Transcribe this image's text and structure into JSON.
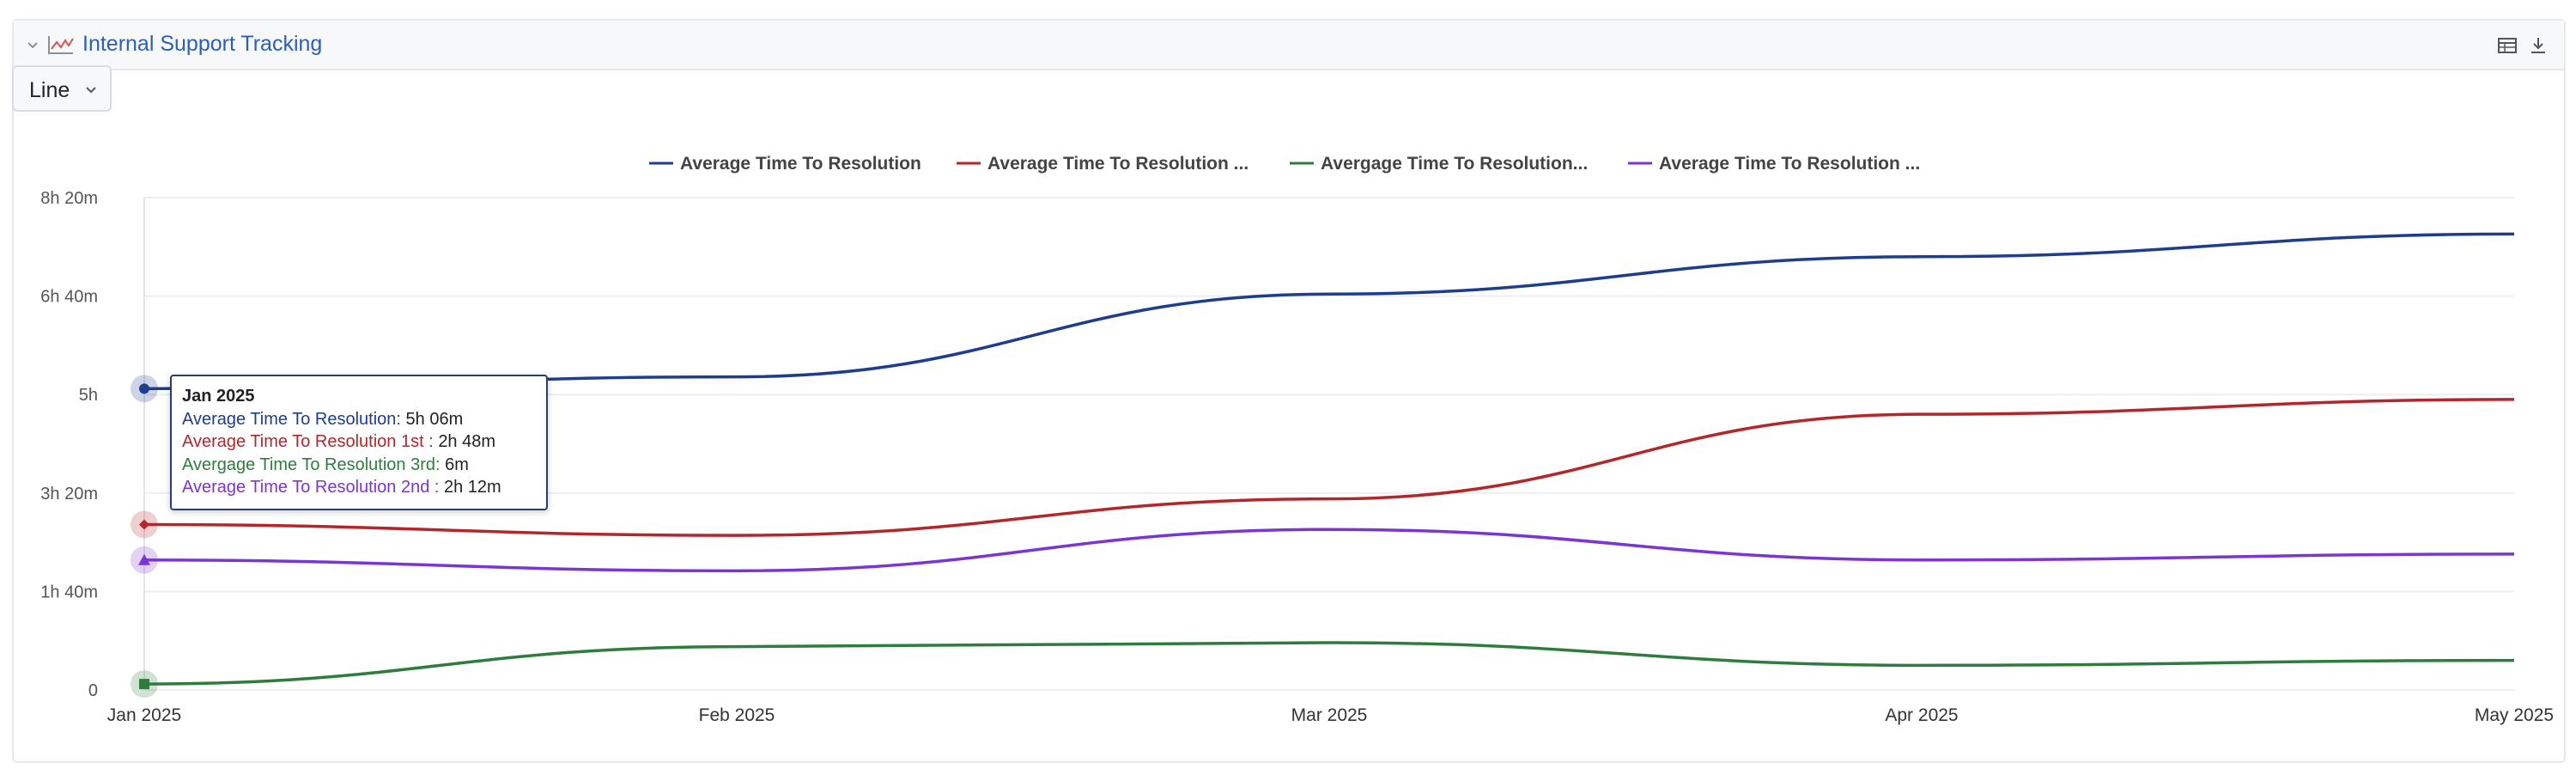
{
  "panel": {
    "title": "Internal Support Tracking",
    "icons": {
      "collapse": "chevron-down-icon",
      "chart": "line-chart-icon",
      "table": "table-icon",
      "download": "download-icon"
    }
  },
  "type_select": {
    "label": "Line"
  },
  "tooltip": {
    "title": "Jan 2025",
    "rows": [
      {
        "label": "Average Time To Resolution: ",
        "value": "5h 06m",
        "color": "#1f3d8f"
      },
      {
        "label": "Average Time To Resolution 1st : ",
        "value": "2h 48m",
        "color": "#b5262b"
      },
      {
        "label": "Avergage Time To Resolution 3rd: ",
        "value": "6m",
        "color": "#2e7d3e"
      },
      {
        "label": "Average Time To Resolution 2nd : ",
        "value": "2h 12m",
        "color": "#7b35d6"
      }
    ]
  },
  "chart_data": {
    "type": "line",
    "x": [
      "Jan 2025",
      "Feb 2025",
      "Mar 2025",
      "Apr 2025",
      "May 2025"
    ],
    "y_ticks": [
      "0",
      "1h 40m",
      "3h 20m",
      "5h",
      "6h 40m",
      "8h 20m"
    ],
    "y_tick_minutes": [
      0,
      100,
      200,
      300,
      400,
      500
    ],
    "ylim_minutes": [
      0,
      500
    ],
    "grid": true,
    "legend_position": "top-center",
    "series": [
      {
        "name": "Average Time To Resolution",
        "legend_label": "Average Time To Resolution",
        "color": "#1f3d8f",
        "marker": "circle",
        "values_minutes": [
          306,
          318,
          402,
          440,
          463
        ]
      },
      {
        "name": "Average Time To Resolution 1st",
        "legend_label": "Average Time To Resolution ...",
        "color": "#b5262b",
        "marker": "diamond",
        "values_minutes": [
          168,
          157,
          194,
          280,
          295
        ]
      },
      {
        "name": "Avergage Time To Resolution 3rd",
        "legend_label": "Avergage Time To Resolution...",
        "color": "#2e7d3e",
        "marker": "square",
        "values_minutes": [
          6,
          44,
          48,
          25,
          30
        ]
      },
      {
        "name": "Average Time To Resolution 2nd",
        "legend_label": "Average Time To Resolution ...",
        "color": "#7b35d6",
        "marker": "triangle",
        "values_minutes": [
          132,
          121,
          163,
          132,
          138
        ]
      }
    ],
    "highlighted_index": 0
  }
}
